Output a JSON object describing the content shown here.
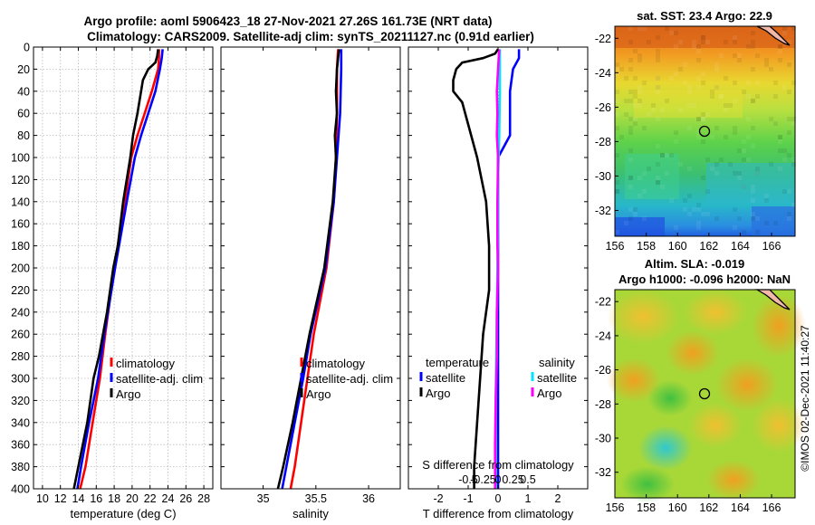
{
  "title_line1": "Argo profile: aoml 5906423_18 27-Nov-2021 27.26S 161.73E (NRT data)",
  "title_line2": "Climatology: CARS2009. Satellite-adj clim: synTS_20211127.nc (0.91d earlier)",
  "credit": "©IMOS 02-Dec-2021 11:40:27",
  "colors": {
    "climatology": "#ff0000",
    "satellite": "#0000ff",
    "argo": "#000000",
    "s_satellite": "#00e5ff",
    "s_argo": "#ff00ff"
  },
  "chart_data": [
    {
      "type": "line",
      "id": "temperature",
      "xlabel": "temperature (deg C)",
      "ylabel": "",
      "xlim": [
        9,
        29
      ],
      "ylim": [
        0,
        400
      ],
      "xticks": [
        10,
        12,
        14,
        16,
        18,
        20,
        22,
        24,
        26,
        28
      ],
      "yticks": [
        0,
        20,
        40,
        60,
        80,
        100,
        120,
        140,
        160,
        180,
        200,
        220,
        240,
        260,
        280,
        300,
        320,
        340,
        360,
        380,
        400
      ],
      "legend": [
        "climatology",
        "satellite-adj. clim",
        "Argo"
      ],
      "series": [
        {
          "name": "climatology",
          "color": "red",
          "depth": [
            2,
            10,
            20,
            40,
            60,
            80,
            100,
            140,
            200,
            260,
            300,
            340,
            380,
            400
          ],
          "values": [
            23.0,
            23.0,
            22.9,
            22.2,
            21.4,
            20.6,
            19.9,
            19.2,
            18.0,
            17.0,
            16.4,
            15.6,
            14.8,
            14.2
          ]
        },
        {
          "name": "satellite-adj. clim",
          "color": "blue",
          "depth": [
            2,
            10,
            20,
            40,
            60,
            80,
            100,
            140,
            200,
            260,
            300,
            340,
            380,
            400
          ],
          "values": [
            23.4,
            23.3,
            23.1,
            22.6,
            21.8,
            21.0,
            20.3,
            19.4,
            18.1,
            16.9,
            16.2,
            15.2,
            14.3,
            13.9
          ]
        },
        {
          "name": "Argo",
          "color": "black",
          "depth": [
            2,
            8,
            14,
            20,
            30,
            40,
            50,
            60,
            80,
            100,
            140,
            180,
            200,
            240,
            280,
            300,
            340,
            380,
            400
          ],
          "values": [
            22.9,
            22.8,
            22.6,
            21.8,
            21.2,
            21.0,
            20.8,
            20.6,
            20.1,
            19.8,
            19.0,
            18.4,
            17.9,
            17.2,
            16.3,
            15.7,
            15.0,
            14.0,
            13.5
          ]
        }
      ]
    },
    {
      "type": "line",
      "id": "salinity",
      "xlabel": "salinity",
      "ylabel": "",
      "xlim": [
        34.6,
        36.3
      ],
      "ylim": [
        0,
        400
      ],
      "xticks": [
        35,
        35.5,
        36
      ],
      "xticklabels": [
        "35",
        "35.5",
        "36"
      ],
      "legend": [
        "climatology",
        "satellite-adj. clim",
        "Argo"
      ],
      "series": [
        {
          "name": "climatology",
          "color": "red",
          "depth": [
            2,
            20,
            60,
            100,
            140,
            200,
            260,
            300,
            340,
            380,
            400
          ],
          "values": [
            35.71,
            35.7,
            35.7,
            35.69,
            35.67,
            35.6,
            35.48,
            35.42,
            35.36,
            35.3,
            35.26
          ]
        },
        {
          "name": "satellite-adj. clim",
          "color": "blue",
          "depth": [
            2,
            20,
            60,
            100,
            140,
            200,
            260,
            300,
            340,
            380,
            400
          ],
          "values": [
            35.74,
            35.74,
            35.73,
            35.7,
            35.67,
            35.59,
            35.45,
            35.38,
            35.3,
            35.22,
            35.18
          ]
        },
        {
          "name": "Argo",
          "color": "black",
          "depth": [
            2,
            20,
            40,
            60,
            80,
            100,
            140,
            200,
            260,
            300,
            340,
            380,
            400
          ],
          "values": [
            35.72,
            35.7,
            35.69,
            35.7,
            35.68,
            35.69,
            35.66,
            35.58,
            35.44,
            35.36,
            35.28,
            35.19,
            35.14
          ]
        }
      ]
    },
    {
      "type": "line",
      "id": "difference",
      "xlabel": "T difference from climatology",
      "ylabel": "",
      "xlim": [
        -3,
        3
      ],
      "ylim": [
        0,
        400
      ],
      "xticks": [
        -2,
        -1,
        0,
        1,
        2
      ],
      "top_xlabel": "S difference from climatology",
      "top_xticks": [
        -0.5,
        -0.25,
        0,
        0.25,
        0.5
      ],
      "top_xticklabels": [
        "-0.5",
        "-0.25",
        "0",
        "0.25",
        "0.5"
      ],
      "legend_temperature": {
        "title": "temperature",
        "items": [
          "satellite",
          "Argo"
        ]
      },
      "legend_salinity": {
        "title": "salinity",
        "items": [
          "satellite",
          "Argo"
        ]
      },
      "series": [
        {
          "name": "T satellite",
          "color": "blue",
          "depth": [
            2,
            10,
            20,
            40,
            60,
            80,
            100,
            140,
            200,
            300,
            400
          ],
          "values": [
            0.7,
            0.7,
            0.5,
            0.4,
            0.4,
            0.4,
            0.0,
            0.0,
            0.0,
            0.0,
            0.0
          ]
        },
        {
          "name": "T Argo",
          "color": "black",
          "depth": [
            2,
            6,
            10,
            14,
            20,
            30,
            40,
            50,
            70,
            100,
            140,
            180,
            220,
            260,
            300,
            340,
            380,
            400
          ],
          "values": [
            0.0,
            -0.1,
            -0.5,
            -1.2,
            -1.4,
            -1.5,
            -1.5,
            -1.2,
            -1.0,
            -0.7,
            -0.4,
            -0.3,
            -0.3,
            -0.5,
            -0.6,
            -0.7,
            -0.8,
            -0.8
          ]
        },
        {
          "name": "S satellite",
          "color": "cyan",
          "depth": [
            2,
            20,
            40,
            80,
            120,
            160,
            200,
            240,
            280,
            320,
            360,
            400
          ],
          "values": [
            0.03,
            0.03,
            0.03,
            0.02,
            0.0,
            0.0,
            -0.01,
            -0.02,
            -0.03,
            -0.04,
            -0.04,
            -0.04
          ]
        },
        {
          "name": "S Argo",
          "color": "magenta",
          "depth": [
            2,
            20,
            40,
            60,
            80,
            100,
            140,
            180,
            200,
            240,
            280,
            320,
            360,
            400
          ],
          "values": [
            0.02,
            0.0,
            -0.02,
            -0.01,
            -0.02,
            0.0,
            -0.01,
            -0.01,
            0.0,
            -0.02,
            -0.02,
            -0.04,
            -0.05,
            -0.05
          ]
        }
      ]
    },
    {
      "type": "heatmap",
      "id": "sst_map",
      "title": "sat. SST: 23.4 Argo: 22.9",
      "xlim": [
        156,
        167.5
      ],
      "ylim": [
        -33.5,
        -21.3
      ],
      "xticks": [
        156,
        158,
        160,
        162,
        164,
        166
      ],
      "yticks": [
        -22,
        -24,
        -26,
        -28,
        -30,
        -32
      ],
      "argo_location": {
        "lon": 161.73,
        "lat": -27.26
      }
    },
    {
      "type": "heatmap",
      "id": "sla_map",
      "title_line1": "Altim. SLA: -0.019",
      "title_line2": "Argo h1000: -0.096 h2000: NaN",
      "xlim": [
        156,
        167.5
      ],
      "ylim": [
        -33.5,
        -21.3
      ],
      "xticks": [
        156,
        158,
        160,
        162,
        164,
        166
      ],
      "yticks": [
        -22,
        -24,
        -26,
        -28,
        -30,
        -32
      ],
      "argo_location": {
        "lon": 161.73,
        "lat": -27.26
      }
    }
  ]
}
